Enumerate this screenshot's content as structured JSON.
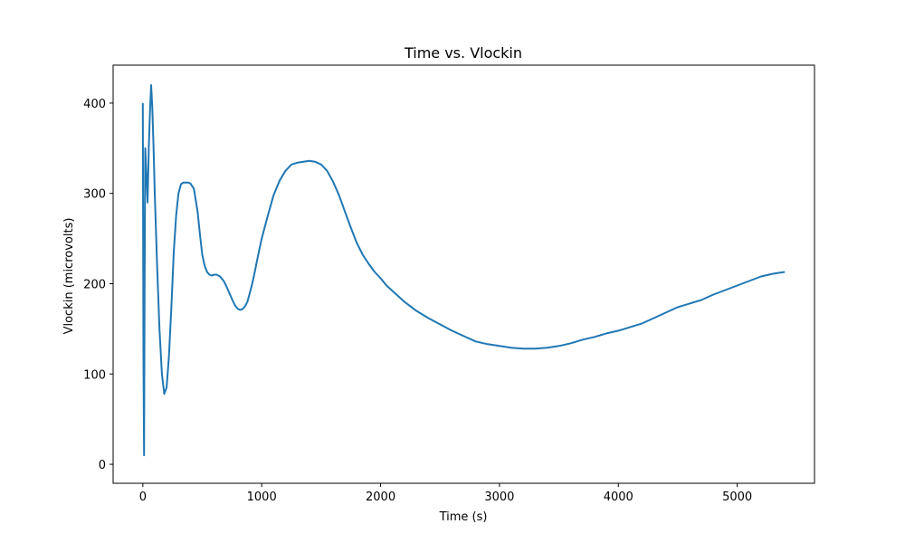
{
  "chart_data": {
    "type": "line",
    "title": "Time vs. Vlockin",
    "xlabel": "Time (s)",
    "ylabel": "Vlockin (microvolts)",
    "xlim": [
      -250,
      5650
    ],
    "ylim": [
      -21,
      442
    ],
    "xticks": [
      0,
      1000,
      2000,
      3000,
      4000,
      5000
    ],
    "yticks": [
      0,
      100,
      200,
      300,
      400
    ],
    "grid": false,
    "legend": "none",
    "series": [
      {
        "color": "#1f77b4",
        "x": [
          0,
          5,
          10,
          15,
          20,
          30,
          40,
          50,
          60,
          70,
          80,
          90,
          100,
          120,
          140,
          160,
          180,
          200,
          220,
          240,
          260,
          280,
          300,
          320,
          340,
          360,
          380,
          400,
          430,
          460,
          480,
          500,
          520,
          540,
          560,
          580,
          600,
          620,
          650,
          680,
          700,
          720,
          740,
          760,
          780,
          800,
          820,
          840,
          860,
          880,
          900,
          920,
          940,
          960,
          980,
          1000,
          1050,
          1100,
          1150,
          1200,
          1250,
          1300,
          1350,
          1400,
          1450,
          1500,
          1550,
          1600,
          1650,
          1700,
          1750,
          1800,
          1850,
          1900,
          1950,
          2000,
          2050,
          2100,
          2200,
          2300,
          2400,
          2500,
          2600,
          2700,
          2800,
          2900,
          3000,
          3100,
          3200,
          3300,
          3400,
          3500,
          3600,
          3700,
          3800,
          3900,
          4000,
          4100,
          4200,
          4300,
          4400,
          4500,
          4600,
          4700,
          4800,
          4900,
          5000,
          5100,
          5200,
          5300,
          5400
        ],
        "y": [
          400,
          120,
          10,
          200,
          350,
          320,
          290,
          350,
          390,
          420,
          395,
          350,
          300,
          220,
          150,
          100,
          78,
          85,
          120,
          175,
          235,
          275,
          300,
          310,
          312,
          312,
          312,
          311,
          305,
          280,
          255,
          232,
          220,
          213,
          210,
          209,
          210,
          210,
          208,
          203,
          198,
          192,
          186,
          180,
          175,
          172,
          171,
          172,
          175,
          180,
          190,
          200,
          212,
          225,
          238,
          250,
          275,
          298,
          314,
          325,
          332,
          334,
          335,
          336,
          335,
          332,
          325,
          313,
          298,
          280,
          262,
          245,
          232,
          222,
          213,
          206,
          198,
          192,
          180,
          170,
          162,
          155,
          148,
          142,
          136,
          133,
          131,
          129,
          128,
          128,
          129,
          131,
          134,
          138,
          141,
          145,
          148,
          152,
          156,
          162,
          168,
          174,
          178,
          182,
          188,
          193,
          198,
          203,
          208,
          211,
          213
        ]
      }
    ]
  }
}
